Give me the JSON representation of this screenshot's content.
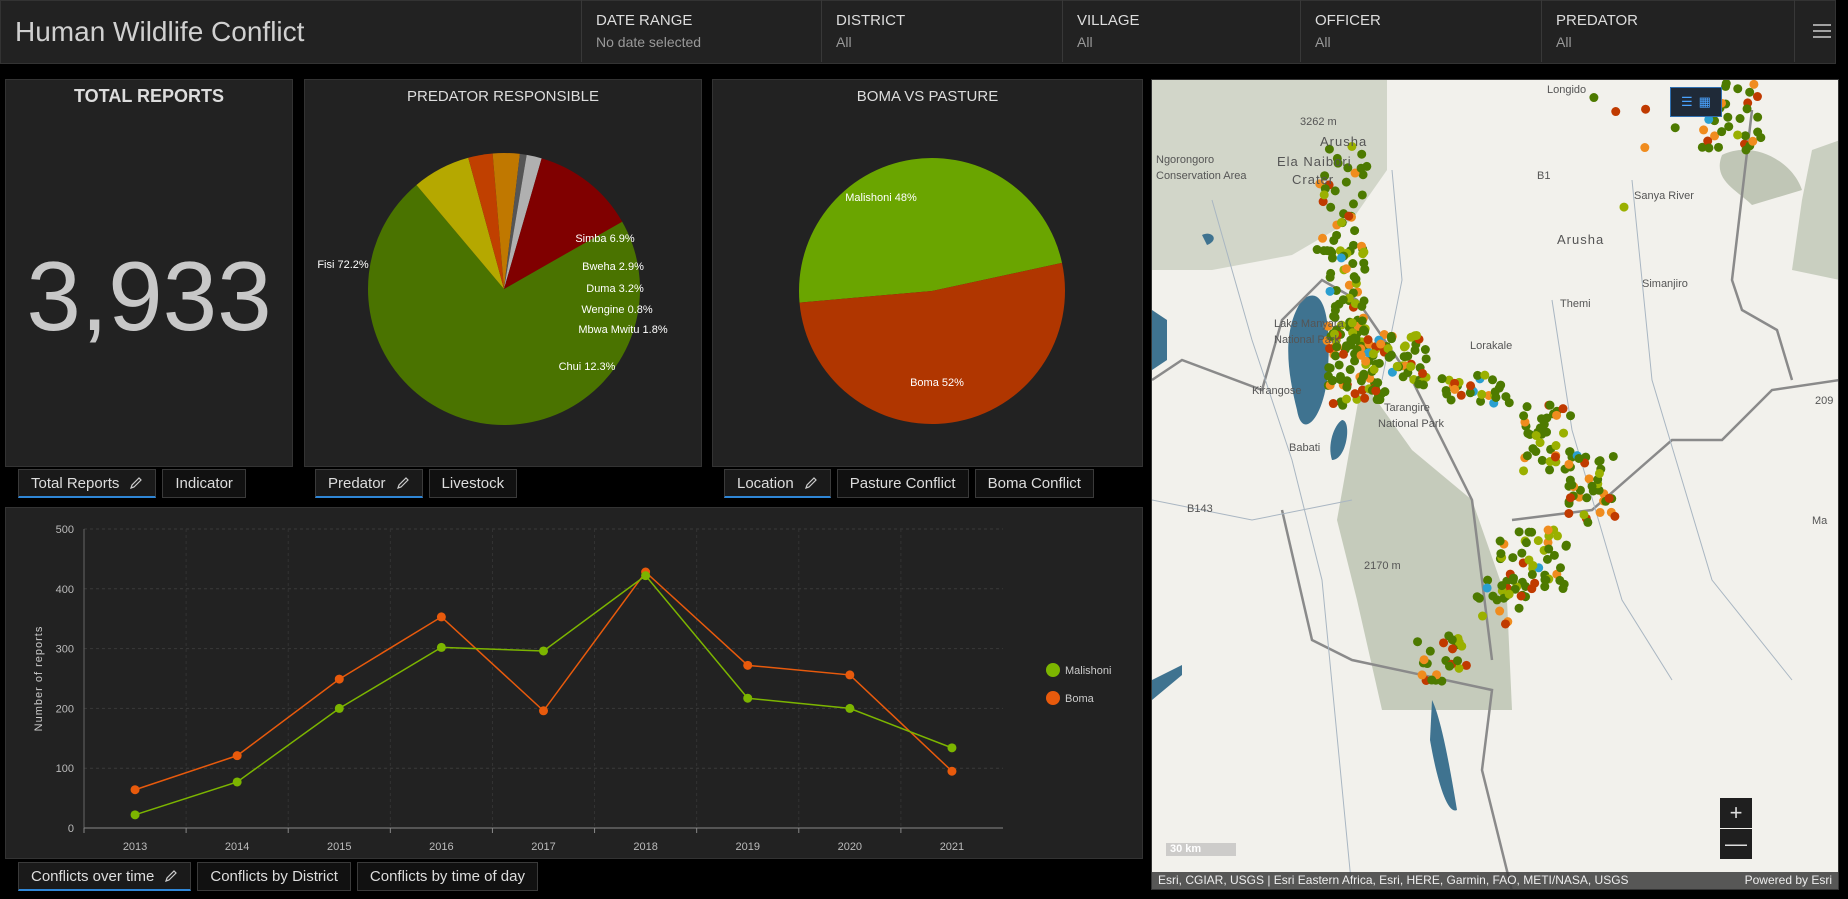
{
  "header": {
    "title": "Human Wildlife Conflict",
    "filters": [
      {
        "label": "DATE RANGE",
        "value": "No date selected"
      },
      {
        "label": "DISTRICT",
        "value": "All"
      },
      {
        "label": "VILLAGE",
        "value": "All"
      },
      {
        "label": "OFFICER",
        "value": "All"
      },
      {
        "label": "PREDATOR",
        "value": "All"
      }
    ],
    "menu_icon": "hamburger-icon"
  },
  "total": {
    "title": "TOTAL REPORTS",
    "value": "3,933",
    "tabs": [
      {
        "label": "Total Reports",
        "active": true
      },
      {
        "label": "Indicator"
      }
    ]
  },
  "predator": {
    "title": "PREDATOR RESPONSIBLE",
    "tabs": [
      {
        "label": "Predator",
        "active": true
      },
      {
        "label": "Livestock"
      }
    ]
  },
  "boma": {
    "title": "BOMA VS PASTURE",
    "tabs": [
      {
        "label": "Location",
        "active": true
      },
      {
        "label": "Pasture Conflict"
      },
      {
        "label": "Boma Conflict"
      }
    ]
  },
  "timeline": {
    "tabs": [
      {
        "label": "Conflicts over time",
        "active": true
      },
      {
        "label": "Conflicts by District"
      },
      {
        "label": "Conflicts by time of day"
      }
    ]
  },
  "chart_data": [
    {
      "type": "pie",
      "title": "PREDATOR RESPONSIBLE",
      "slices": [
        {
          "label": "Fisi 72.2%",
          "name": "Fisi",
          "value": 72.2,
          "color": "#4a7300"
        },
        {
          "label": "Simba 6.9%",
          "name": "Simba",
          "value": 6.9,
          "color": "#b5a800"
        },
        {
          "label": "Bweha 2.9%",
          "name": "Bweha",
          "value": 2.9,
          "color": "#c04000"
        },
        {
          "label": "Duma 3.2%",
          "name": "Duma",
          "value": 3.2,
          "color": "#c07800"
        },
        {
          "label": "Wengine 0.8%",
          "name": "Wengine",
          "value": 0.8,
          "color": "#555555"
        },
        {
          "label": "Mbwa Mwitu 1.8%",
          "name": "Mbwa Mwitu",
          "value": 1.8,
          "color": "#b0b0b0"
        },
        {
          "label": "Chui 12.3%",
          "name": "Chui",
          "value": 12.3,
          "color": "#800000"
        }
      ]
    },
    {
      "type": "pie",
      "title": "BOMA VS PASTURE",
      "slices": [
        {
          "label": "Malishoni 48%",
          "name": "Malishoni",
          "value": 48,
          "color": "#6aa500"
        },
        {
          "label": "Boma 52%",
          "name": "Boma",
          "value": 52,
          "color": "#b03600"
        }
      ]
    },
    {
      "type": "line",
      "ylabel": "Number of reports",
      "x": [
        "2013",
        "2014",
        "2015",
        "2016",
        "2017",
        "2018",
        "2019",
        "2020",
        "2021"
      ],
      "yticks": [
        "0",
        "100",
        "200",
        "300",
        "400",
        "500"
      ],
      "ylim": [
        0,
        500
      ],
      "grid": true,
      "legend": "right",
      "series": [
        {
          "name": "Malishoni",
          "color": "#7cb500",
          "values": [
            22,
            77,
            200,
            302,
            296,
            422,
            217,
            200,
            134
          ]
        },
        {
          "name": "Boma",
          "color": "#e85a0c",
          "values": [
            64,
            121,
            249,
            353,
            196,
            428,
            272,
            256,
            95
          ]
        }
      ]
    }
  ],
  "map": {
    "labels": [
      "Longido",
      "3262 m",
      "Arusha",
      "Ela Naibori",
      "Crater",
      "Ngorongoro",
      "Conservation Area",
      "B1",
      "Arusha",
      "Sanya River",
      "Simanjiro",
      "Lake Manyara",
      "National Park",
      "Tarangire",
      "National Park",
      "Babati",
      "Kirangose",
      "Lorakale",
      "Themi",
      "B143",
      "2170 m",
      "209",
      "Ma"
    ],
    "scale": "30 km",
    "attribution": "Esri, CGIAR, USGS | Esri Eastern Africa, Esri, HERE, Garmin, FAO, METI/NASA, USGS",
    "powered": "Powered by Esri",
    "zoom_in": "+",
    "zoom_out": "—",
    "dot_colors": [
      "#4d7a00",
      "#9ab000",
      "#c03a00",
      "#f08c1e",
      "#2a9fd0"
    ]
  }
}
